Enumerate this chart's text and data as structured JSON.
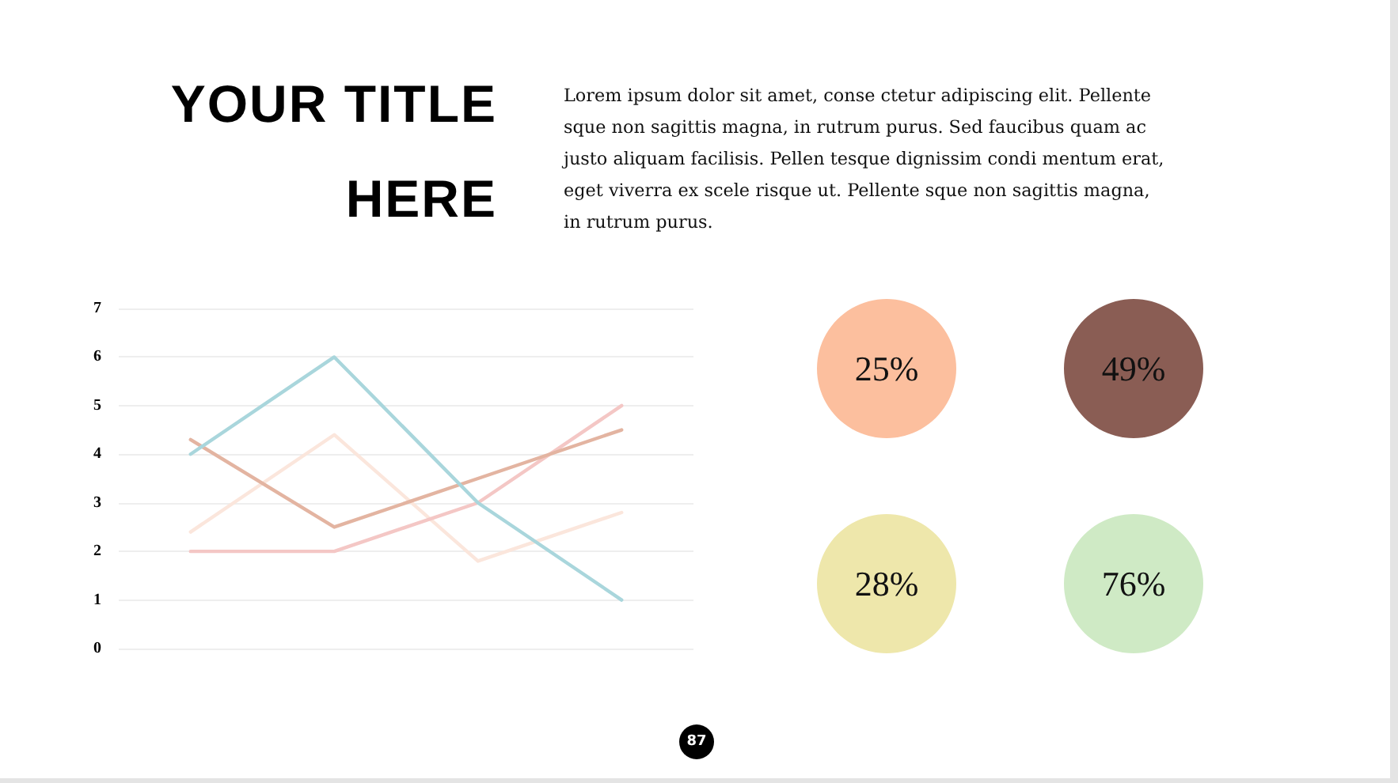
{
  "chart_data": [
    {
      "type": "line",
      "title": "YOUR TITLE HERE",
      "subtitle": "Lorem ipsum dolor sit amet, conse ctetur adipiscing elit. Pellente sque non sagittis magna, in rutrum purus. Sed faucibus quam ac justo aliquam facilisis. Pellen tesque dignissim condi mentum erat, eget viverra ex scele risque ut. Pellente sque non sagittis magna, in rutrum purus.",
      "categories": [
        null,
        null,
        null,
        null
      ],
      "series": [
        {
          "color": "#fbe6dc",
          "values": [
            2.4,
            4.4,
            1.8,
            2.8
          ]
        },
        {
          "color": "#f4c7c5",
          "values": [
            2,
            2,
            3,
            5
          ]
        },
        {
          "color": "#e3b4a1",
          "values": [
            4.3,
            2.5,
            3.5,
            4.5
          ]
        },
        {
          "color": "#a9d6dc",
          "values": [
            4,
            6,
            3,
            1
          ]
        }
      ],
      "ylim": [
        0,
        7
      ],
      "yticks": [
        0,
        1,
        2,
        3,
        4,
        5,
        6,
        7
      ],
      "grid": "y",
      "tick_labels": "y",
      "marker": "none",
      "line_style": "solid",
      "annotations": [
        "87"
      ]
    },
    {
      "type": "other",
      "categories": [
        null,
        null,
        null,
        null
      ],
      "colors": [
        "#fcbf9e",
        "#8a5d54",
        "#eee7ab",
        "#cfeac5"
      ],
      "value_labels": [
        "25%",
        "49%",
        "28%",
        "76%"
      ]
    }
  ]
}
